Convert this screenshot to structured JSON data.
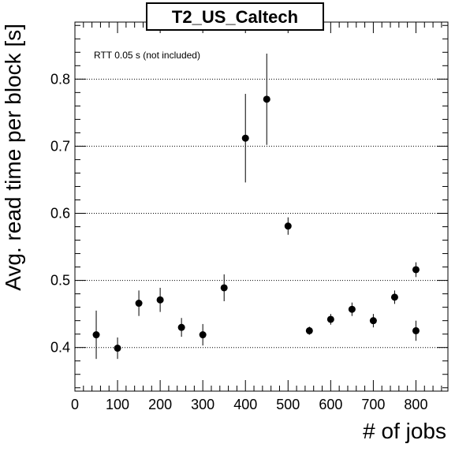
{
  "chart_data": {
    "type": "scatter",
    "title": "T2_US_Caltech",
    "xlabel": "# of jobs",
    "ylabel": "Avg. read time per block [s]",
    "annotation": "RTT 0.05 s (not included)",
    "xlim": [
      0,
      875
    ],
    "ylim": [
      0.335,
      0.885
    ],
    "x_ticks": [
      0,
      100,
      200,
      300,
      400,
      500,
      600,
      700,
      800
    ],
    "x_tick_labels": [
      "0",
      "100",
      "200",
      "300",
      "400",
      "500",
      "600",
      "700",
      "800"
    ],
    "y_ticks": [
      0.4,
      0.5,
      0.6,
      0.7,
      0.8
    ],
    "y_tick_labels": [
      "0.4",
      "0.5",
      "0.6",
      "0.7",
      "0.8"
    ],
    "grid": "horizontal dotted at major y ticks",
    "marker_color": "#000000",
    "points": [
      {
        "x": 50,
        "y": 0.419,
        "err": 0.036
      },
      {
        "x": 100,
        "y": 0.399,
        "err": 0.016
      },
      {
        "x": 150,
        "y": 0.466,
        "err": 0.019
      },
      {
        "x": 200,
        "y": 0.471,
        "err": 0.018
      },
      {
        "x": 250,
        "y": 0.43,
        "err": 0.014
      },
      {
        "x": 300,
        "y": 0.419,
        "err": 0.016
      },
      {
        "x": 350,
        "y": 0.489,
        "err": 0.02
      },
      {
        "x": 400,
        "y": 0.712,
        "err": 0.066
      },
      {
        "x": 450,
        "y": 0.77,
        "err": 0.068
      },
      {
        "x": 500,
        "y": 0.581,
        "err": 0.013
      },
      {
        "x": 550,
        "y": 0.425,
        "err": 0.006
      },
      {
        "x": 600,
        "y": 0.442,
        "err": 0.008
      },
      {
        "x": 650,
        "y": 0.457,
        "err": 0.01
      },
      {
        "x": 700,
        "y": 0.44,
        "err": 0.01
      },
      {
        "x": 750,
        "y": 0.475,
        "err": 0.01
      },
      {
        "x": 800,
        "y": 0.516,
        "err": 0.011
      },
      {
        "x": 800,
        "y": 0.425,
        "err": 0.015
      }
    ]
  }
}
